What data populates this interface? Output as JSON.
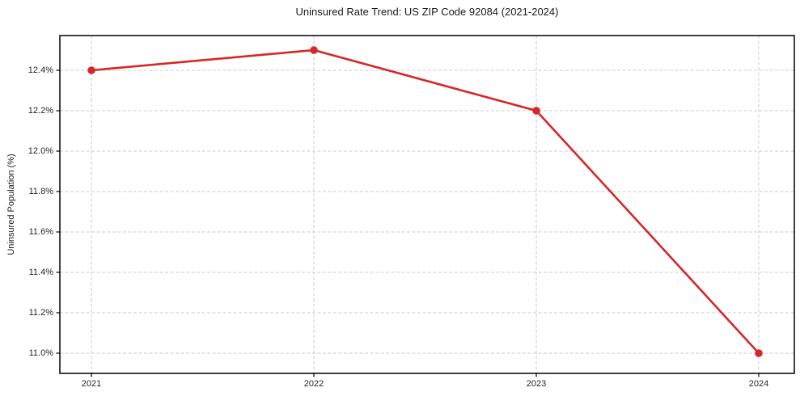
{
  "title": "Uninsured Rate Trend: US ZIP Code 92084 (2021-2024)",
  "colors": {
    "line": "#d62728",
    "marker": "#d62728",
    "grid": "#cccccc",
    "axis": "#000000",
    "text": "#1a1a1a",
    "background": "#ffffff"
  },
  "chart_data": {
    "type": "line",
    "title": "Uninsured Rate Trend: US ZIP Code 92084 (2021-2024)",
    "xlabel": "",
    "ylabel": "Uninsured Population (%)",
    "x": [
      2021,
      2022,
      2023,
      2024
    ],
    "x_tick_labels": [
      "2021",
      "2022",
      "2023",
      "2024"
    ],
    "values": [
      12.4,
      12.5,
      12.2,
      11.0
    ],
    "y_ticks": [
      11.0,
      11.2,
      11.4,
      11.6,
      11.8,
      12.0,
      12.2,
      12.4
    ],
    "y_tick_labels": [
      "11.0%",
      "11.2%",
      "11.4%",
      "11.6%",
      "11.8%",
      "12.0%",
      "12.2%",
      "12.4%"
    ],
    "xlim": [
      2020.858,
      2024.16
    ],
    "ylim": [
      10.9,
      12.572
    ],
    "grid": true,
    "grid_style": "dashed",
    "legend": false,
    "marker": "circle",
    "line_color": "#d62728"
  }
}
